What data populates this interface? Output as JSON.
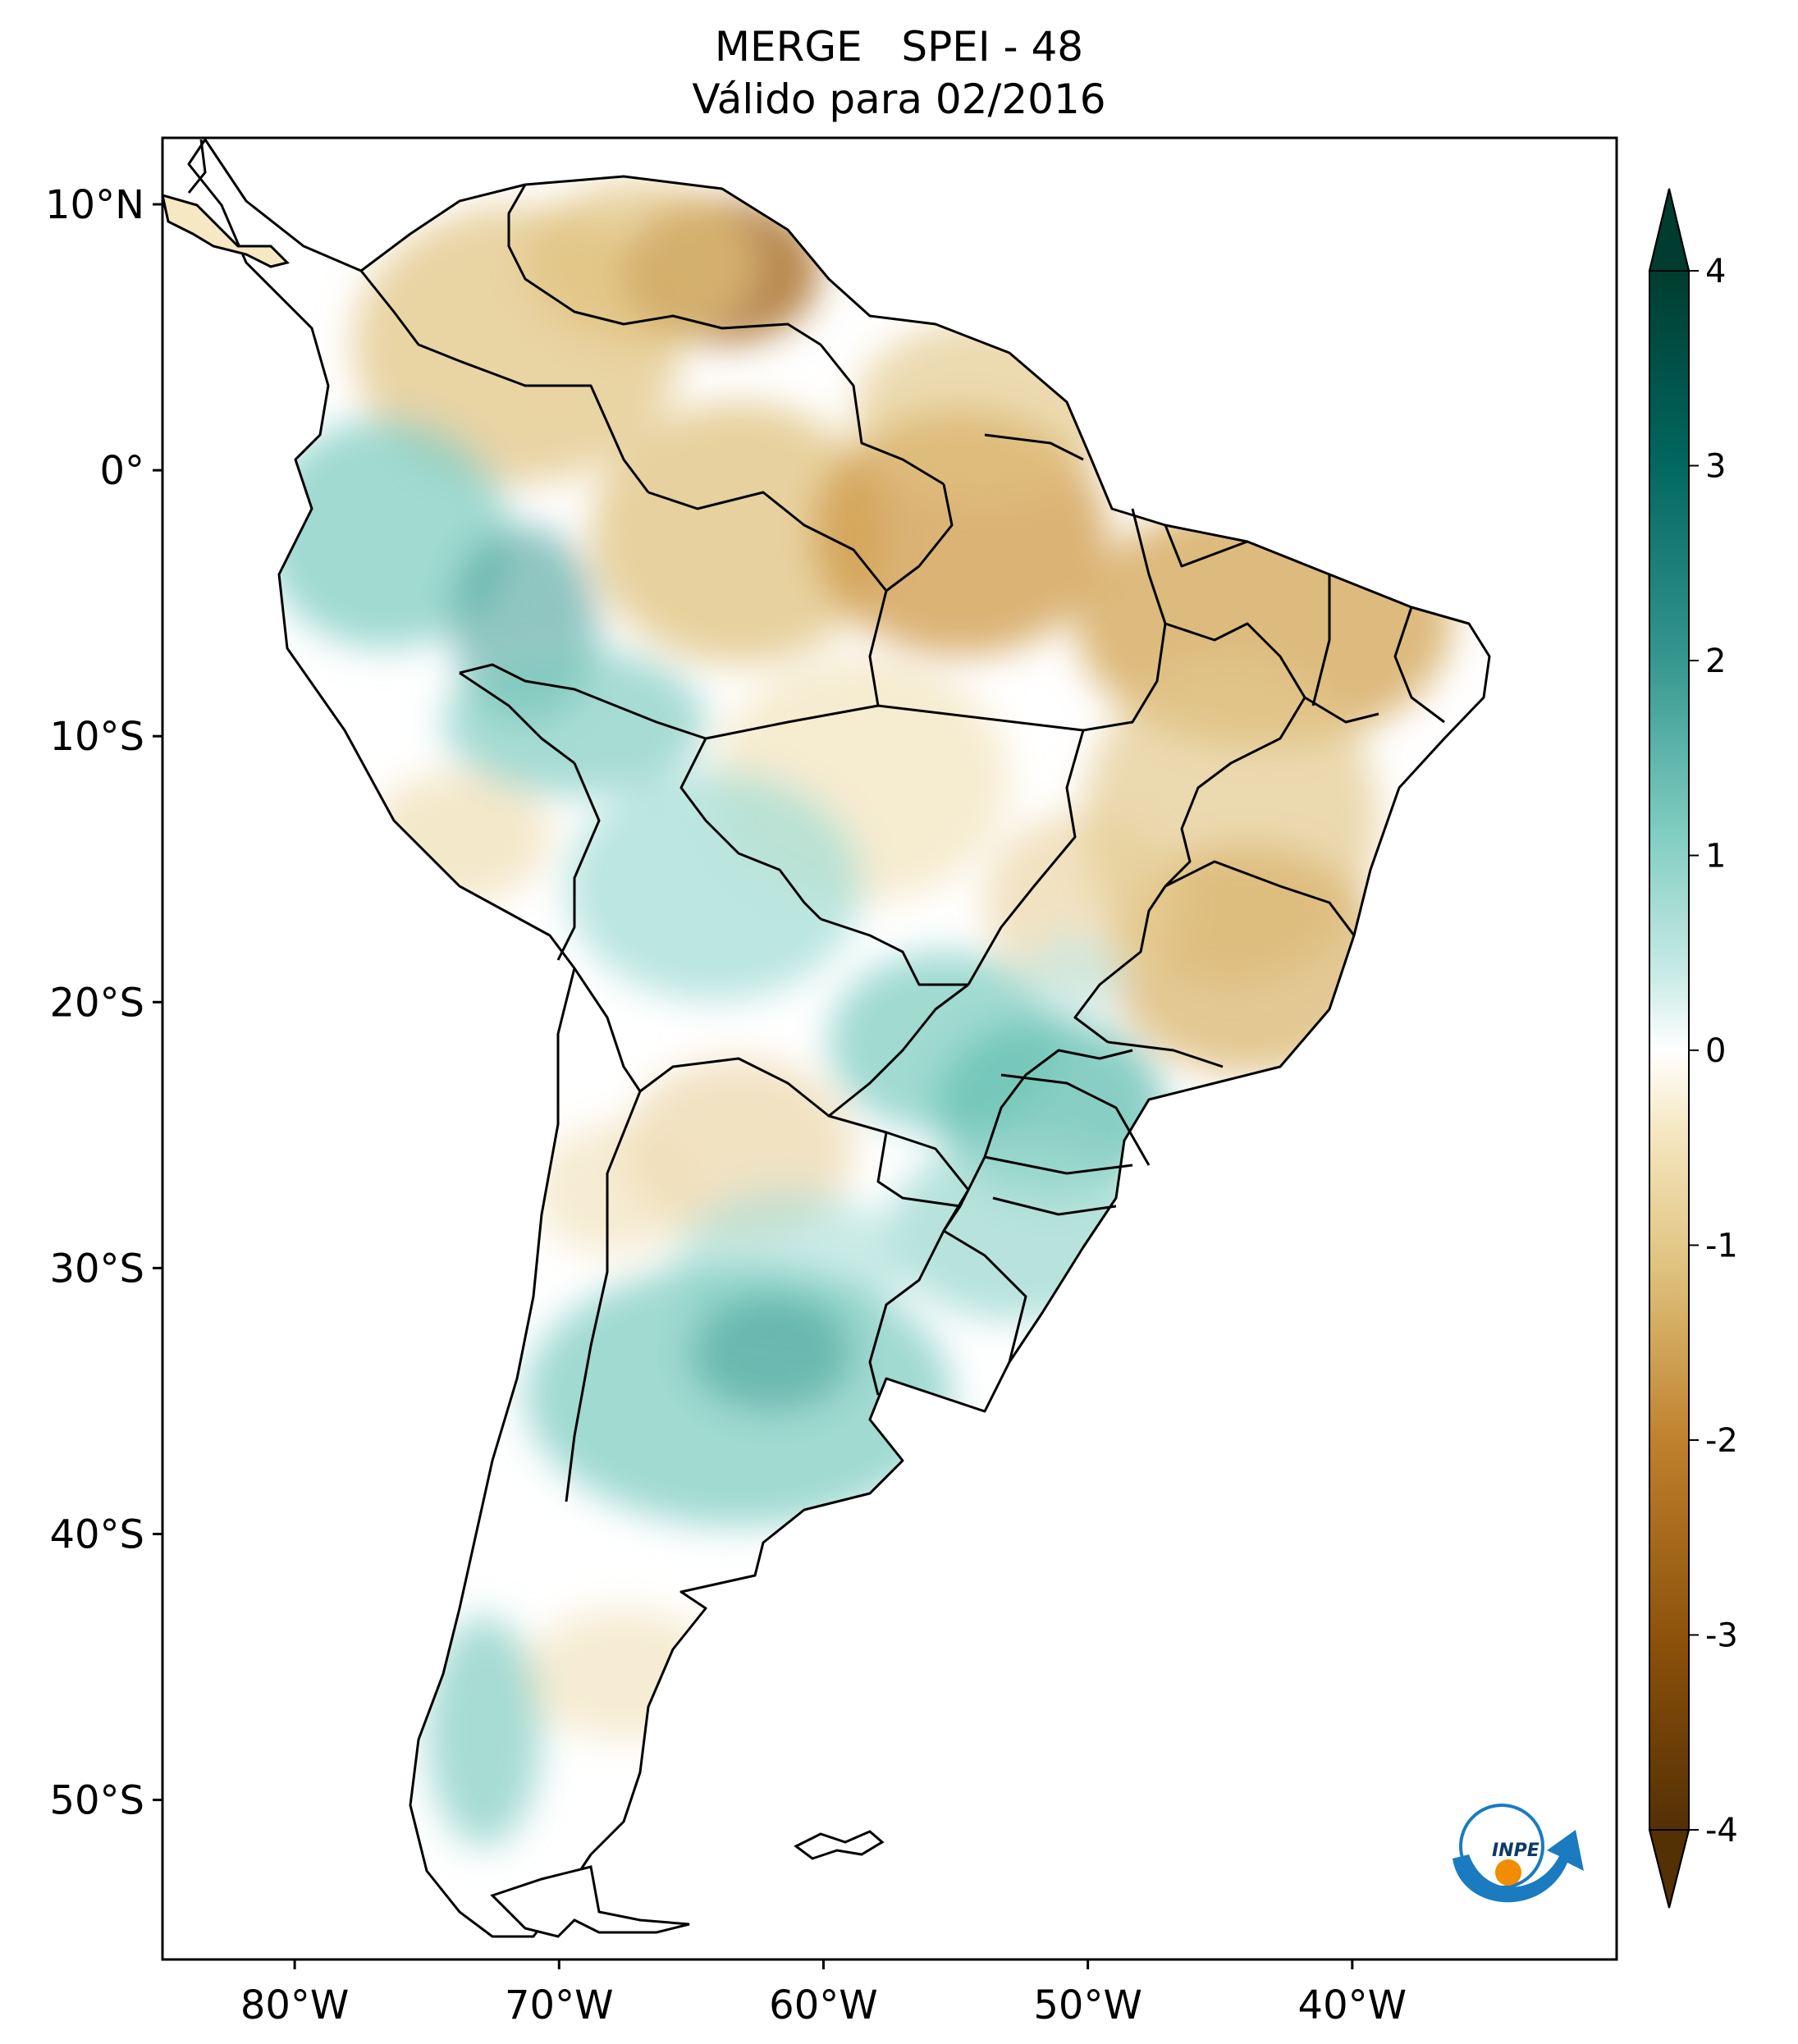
{
  "title": {
    "line1": "MERGE   SPEI - 48",
    "line2": "Válido para 02/2016"
  },
  "map": {
    "lon_range": [
      -85,
      -30
    ],
    "lat_range": [
      -56,
      12.5
    ],
    "lon_ticks": [
      {
        "value": -80,
        "label": "80°W"
      },
      {
        "value": -70,
        "label": "70°W"
      },
      {
        "value": -60,
        "label": "60°W"
      },
      {
        "value": -50,
        "label": "50°W"
      },
      {
        "value": -40,
        "label": "40°W"
      }
    ],
    "lat_ticks": [
      {
        "value": 10,
        "label": "10°N"
      },
      {
        "value": 0,
        "label": "0°"
      },
      {
        "value": -10,
        "label": "10°S"
      },
      {
        "value": -20,
        "label": "20°S"
      },
      {
        "value": -30,
        "label": "30°S"
      },
      {
        "value": -40,
        "label": "40°S"
      },
      {
        "value": -50,
        "label": "50°S"
      }
    ]
  },
  "colorbar": {
    "range": [
      -4,
      4
    ],
    "ticks": [
      {
        "value": 4,
        "label": "4"
      },
      {
        "value": 3,
        "label": "3"
      },
      {
        "value": 2,
        "label": "2"
      },
      {
        "value": 1,
        "label": "1"
      },
      {
        "value": 0,
        "label": "0"
      },
      {
        "value": -1,
        "label": "-1"
      },
      {
        "value": -2,
        "label": "-2"
      },
      {
        "value": -3,
        "label": "-3"
      },
      {
        "value": -4,
        "label": "-4"
      }
    ],
    "colors": {
      "dry_extreme": "#543005",
      "dry_strong": "#8c510a",
      "dry_moderate": "#bf812d",
      "dry_mild": "#dfc27d",
      "dry_slight": "#f6e8c3",
      "neutral": "#ffffff",
      "wet_slight": "#c7eae5",
      "wet_mild": "#80cdc1",
      "wet_moderate": "#35978f",
      "wet_strong": "#01665e",
      "wet_extreme": "#003c30"
    }
  },
  "logo": {
    "text": "INPE",
    "icon": "inpe-logo"
  }
}
